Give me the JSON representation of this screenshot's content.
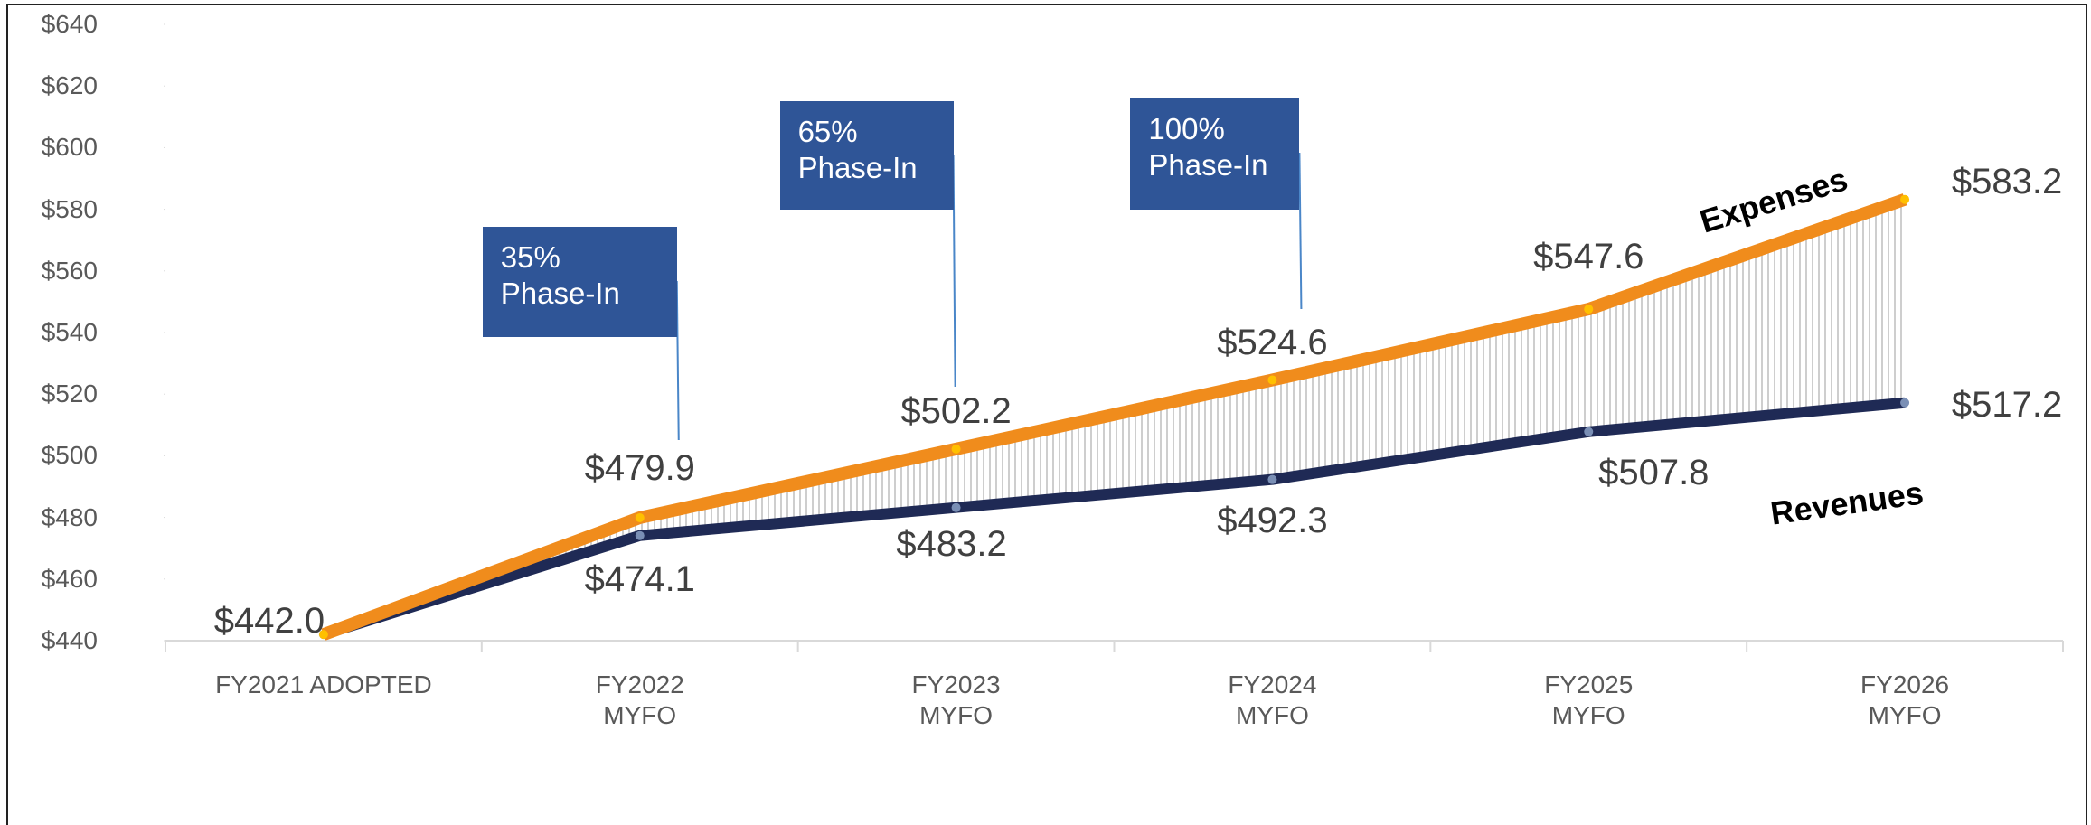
{
  "chart_data": {
    "type": "line",
    "categories": [
      "FY2021 ADOPTED",
      "FY2022\nMYFO",
      "FY2023\nMYFO",
      "FY2024\nMYFO",
      "FY2025\nMYFO",
      "FY2026\nMYFO"
    ],
    "series": [
      {
        "name": "Expenses",
        "color": "#f08c1c",
        "values": [
          442.0,
          479.9,
          502.2,
          524.6,
          547.6,
          583.2
        ],
        "value_labels": [
          "$442.0",
          "$479.9",
          "$502.2",
          "$524.6",
          "$547.6",
          "$583.2"
        ]
      },
      {
        "name": "Revenues",
        "color": "#1f2a55",
        "values": [
          442.0,
          474.1,
          483.2,
          492.3,
          507.8,
          517.2
        ],
        "value_labels": [
          null,
          "$474.1",
          "$483.2",
          "$492.3",
          "$507.8",
          "$517.2"
        ]
      }
    ],
    "ylim": [
      440,
      640
    ],
    "yticks": [
      {
        "value": 440,
        "label": "$440"
      },
      {
        "value": 460,
        "label": "$460"
      },
      {
        "value": 480,
        "label": "$480"
      },
      {
        "value": 500,
        "label": "$500"
      },
      {
        "value": 520,
        "label": "$520"
      },
      {
        "value": 540,
        "label": "$540"
      },
      {
        "value": 560,
        "label": "$560"
      },
      {
        "value": 580,
        "label": "$580"
      },
      {
        "value": 600,
        "label": "$600"
      },
      {
        "value": 620,
        "label": "$620"
      },
      {
        "value": 640,
        "label": "$640"
      }
    ],
    "annotations": [
      "35%\nPhase-In",
      "65%\nPhase-In",
      "100%\nPhase-In"
    ],
    "grid": false
  }
}
